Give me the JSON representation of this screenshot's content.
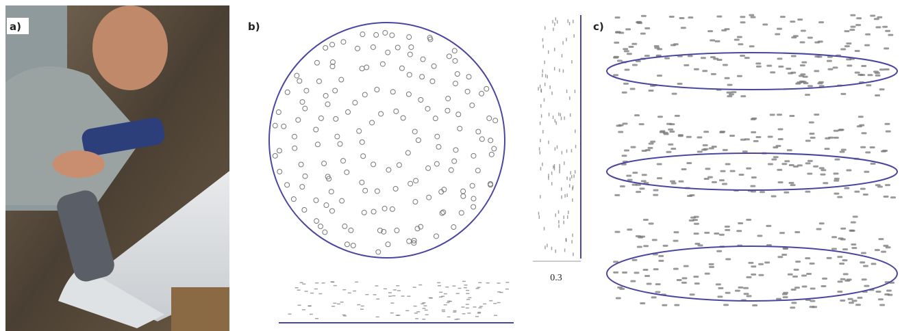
{
  "panels": [
    {
      "label": "a)"
    },
    {
      "label": "b)",
      "scale_label": "0.3"
    },
    {
      "label": "c)"
    }
  ]
}
